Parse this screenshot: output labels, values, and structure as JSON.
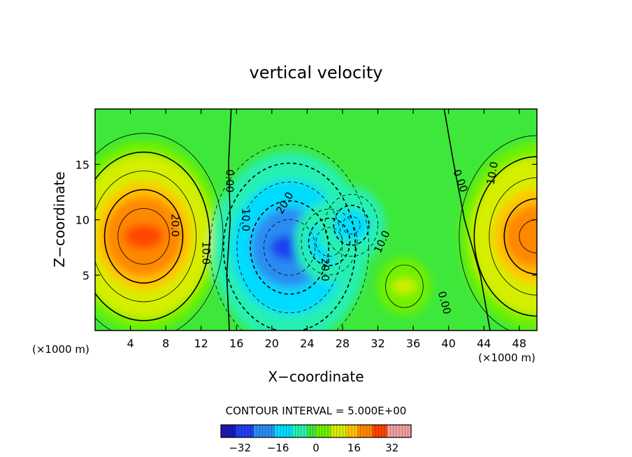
{
  "chart_data": {
    "type": "heatmap",
    "subtype": "filled-contour",
    "title": "vertical velocity",
    "xlabel": "X−coordinate",
    "ylabel": "Z−coordinate",
    "x_unit_left": "(×1000 m)",
    "x_unit_right": "(×1000 m)",
    "xlim": [
      0,
      50
    ],
    "ylim": [
      0,
      20
    ],
    "xticks": [
      4,
      8,
      12,
      16,
      20,
      24,
      28,
      32,
      36,
      40,
      44,
      48
    ],
    "yticks": [
      5,
      10,
      15
    ],
    "contour_interval_label": "CONTOUR INTERVAL = 5.000E+00",
    "colorbar": {
      "range": [
        -40,
        40
      ],
      "ticks": [
        -32,
        -16,
        0,
        16,
        32
      ],
      "tick_labels": [
        "−32",
        "−16",
        "0",
        "16",
        "32"
      ]
    },
    "features": [
      {
        "kind": "max",
        "x": 5.5,
        "z": 8.5,
        "value": 28
      },
      {
        "kind": "max",
        "x": 50,
        "z": 8.5,
        "value": 25
      },
      {
        "kind": "min",
        "x": 22,
        "z": 7.5,
        "value": -28
      },
      {
        "kind": "min",
        "x": 26.5,
        "z": 8,
        "value": -18
      },
      {
        "kind": "min",
        "x": 29,
        "z": 9.5,
        "value": -15
      },
      {
        "kind": "max",
        "x": 35,
        "z": 4,
        "value": 8
      }
    ],
    "contour_labels": [
      {
        "text": "20.0",
        "x": 9,
        "z": 9.5,
        "rot": 90
      },
      {
        "text": "10.0",
        "x": 12.5,
        "z": 7,
        "rot": 90
      },
      {
        "text": "0.00",
        "x": 15.2,
        "z": 13.5,
        "rot": 90
      },
      {
        "text": "10.0",
        "x": 17,
        "z": 10,
        "rot": 90
      },
      {
        "text": "20.0",
        "x": 21.5,
        "z": 11.5,
        "rot": -60
      },
      {
        "text": "20.0",
        "x": 26,
        "z": 5.5,
        "rot": 90
      },
      {
        "text": "10.0",
        "x": 32.5,
        "z": 8,
        "rot": -65
      },
      {
        "text": "0.00",
        "x": 39.5,
        "z": 2.5,
        "rot": 75
      },
      {
        "text": "0.00",
        "x": 41.3,
        "z": 13.5,
        "rot": 70
      },
      {
        "text": "10.0",
        "x": 45,
        "z": 14.2,
        "rot": -80
      }
    ]
  }
}
